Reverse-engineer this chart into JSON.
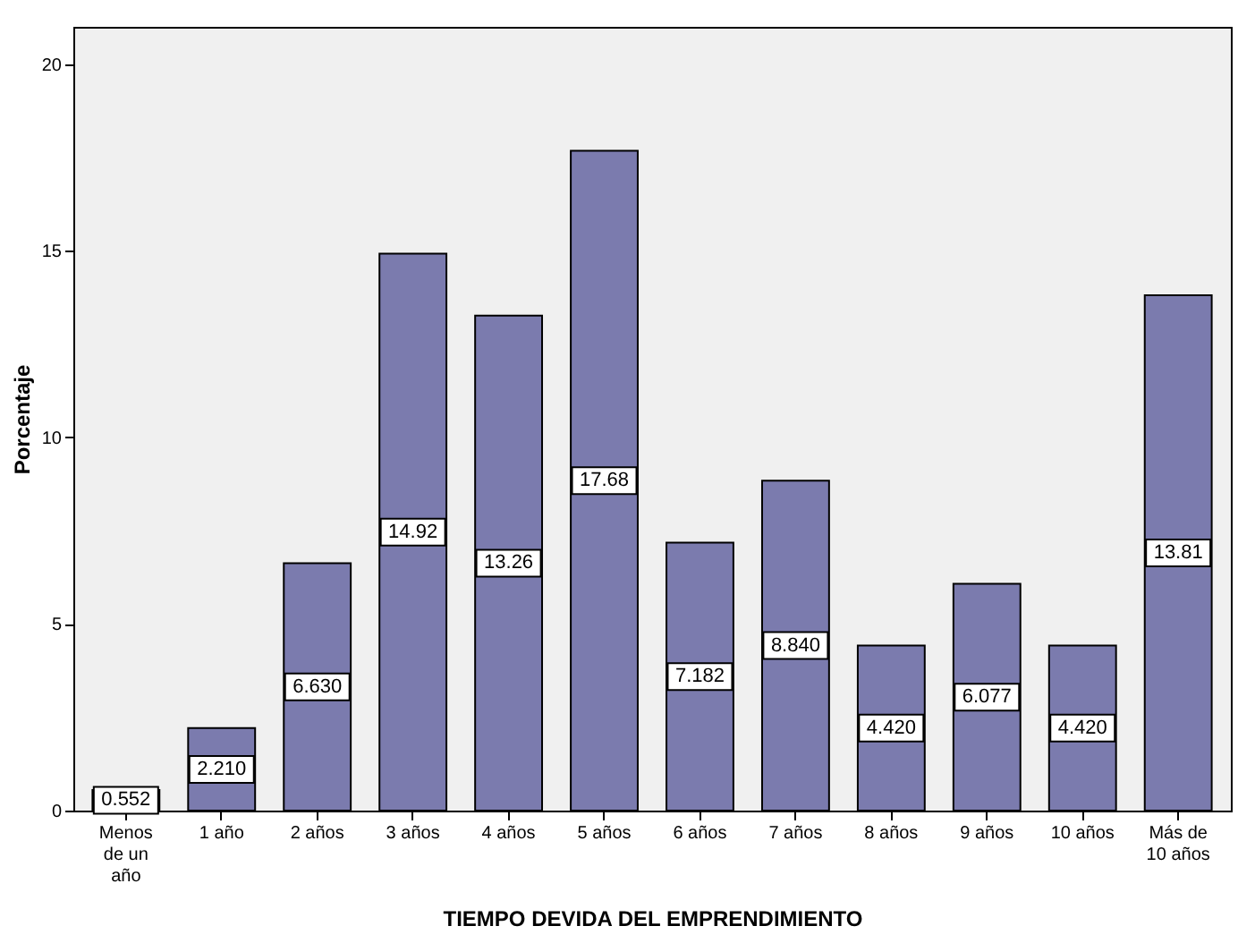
{
  "chart_data": {
    "type": "bar",
    "xlabel": "TIEMPO DEVIDA DEL EMPRENDIMIENTO",
    "ylabel": "Porcentaje",
    "categories": [
      "Menos de un año",
      "1 año",
      "2 años",
      "3 años",
      "4 años",
      "5 años",
      "6 años",
      "7 años",
      "8 años",
      "9 años",
      "10 años",
      "Más de 10 años"
    ],
    "values": [
      0.552,
      2.21,
      6.63,
      14.92,
      13.26,
      17.68,
      7.182,
      8.84,
      4.42,
      6.077,
      4.42,
      13.81
    ],
    "value_labels": [
      "0.552",
      "2.210",
      "6.630",
      "14.92",
      "13.26",
      "17.68",
      "7.182",
      "8.840",
      "4.420",
      "6.077",
      "4.420",
      "13.81"
    ],
    "color": "#7b7bae",
    "ylim": [
      0,
      21
    ],
    "yticks": [
      0,
      5,
      10,
      15,
      20
    ],
    "grid": false
  }
}
